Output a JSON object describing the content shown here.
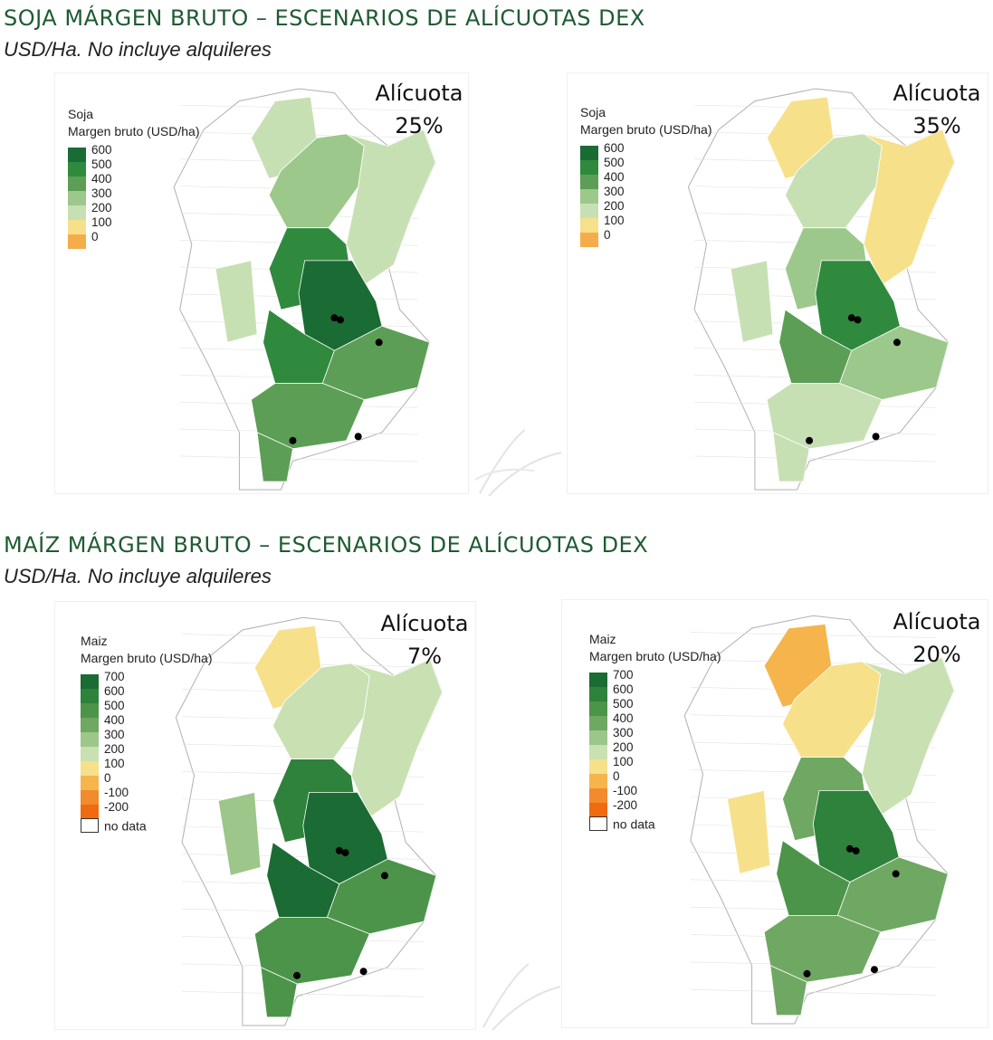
{
  "soja": {
    "title": "SOJA MÁRGEN BRUTO – ESCENARIOS DE ALÍCUOTAS DEX",
    "subtitle": "USD/Ha. No incluye alquileres",
    "legend_title_1": "Soja",
    "legend_title_2": "Margen bruto (USD/ha)",
    "legend_labels": [
      "600",
      "500",
      "400",
      "300",
      "200",
      "100",
      "0"
    ],
    "maps": [
      {
        "scenario_label": "Alícuota",
        "rate": "25%"
      },
      {
        "scenario_label": "Alícuota",
        "rate": "35%"
      }
    ]
  },
  "maiz": {
    "title": "MAÍZ MÁRGEN BRUTO – ESCENARIOS DE ALÍCUOTAS DEX",
    "subtitle": "USD/Ha. No incluye alquileres",
    "legend_title_1": "Maiz",
    "legend_title_2": "Margen bruto (USD/ha)",
    "legend_labels": [
      "700",
      "600",
      "500",
      "400",
      "300",
      "200",
      "100",
      "0",
      "-100",
      "-200"
    ],
    "nodata_label": "no data",
    "maps": [
      {
        "scenario_label": "Alícuota",
        "rate": "7%"
      },
      {
        "scenario_label": "Alícuota",
        "rate": "20%"
      }
    ]
  },
  "colors": {
    "title_green": "#1f5b32",
    "soja_scale": [
      "#1b6b34",
      "#2f8a3e",
      "#5c9e55",
      "#9cc88c",
      "#c7e0b3",
      "#f7e08a",
      "#f5ad4c"
    ],
    "maiz_scale": [
      "#1b6b34",
      "#2e823b",
      "#4c9449",
      "#6fa862",
      "#9dc68a",
      "#c9e0b2",
      "#f7e08a",
      "#f5b54c",
      "#f28a2e",
      "#f06a10"
    ],
    "border_gray": "#b0b0b0",
    "city_dot": "#000000"
  },
  "map_values": {
    "soja_25": {
      "nw": 150,
      "north_center": 280,
      "ne": 150,
      "center": 400,
      "core": 550,
      "west": 150,
      "south_center": 420,
      "south": 300,
      "buenos_aires_south": 300,
      "far_south": 300
    },
    "soja_35": {
      "nw": 50,
      "north_center": 150,
      "ne": 50,
      "center": 250,
      "core": 450,
      "west": 150,
      "south_center": 350,
      "south": 250,
      "buenos_aires_south": 150,
      "far_south": 150
    },
    "maiz_7": {
      "nw": 80,
      "north_center": 150,
      "ne": 150,
      "center": 550,
      "core": 650,
      "west": 250,
      "south_center": 600,
      "south": 450,
      "buenos_aires_south": 450,
      "far_south": 400
    },
    "maiz_20": {
      "nw": -50,
      "north_center": 50,
      "ne": 150,
      "center": 300,
      "core": 550,
      "west": 80,
      "south_center": 450,
      "south": 350,
      "buenos_aires_south": 350,
      "far_south": 300
    }
  }
}
